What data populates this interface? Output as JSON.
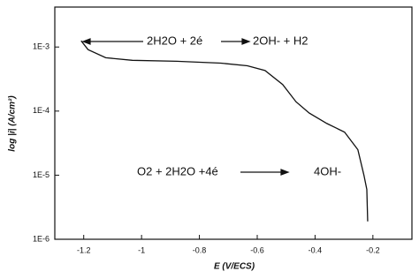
{
  "chart_data": {
    "type": "line",
    "x_label": "E (V/ECS)",
    "y_label": "log |i| (A/cm²)",
    "log_y": true,
    "xlim": [
      -1.3,
      -0.065
    ],
    "ylim": [
      1e-06,
      0.0042
    ],
    "xticks": [
      -1.2,
      -1.0,
      -0.8,
      -0.6,
      -0.4,
      -0.2
    ],
    "yticks": [
      {
        "value": 1e-06,
        "label": "1E-6"
      },
      {
        "value": 1e-05,
        "label": "1E-5"
      },
      {
        "value": 0.0001,
        "label": "1E-4"
      },
      {
        "value": 0.001,
        "label": "1E-3"
      }
    ],
    "x": [
      -1.209,
      -1.185,
      -1.124,
      -1.032,
      -0.879,
      -0.726,
      -0.634,
      -0.573,
      -0.512,
      -0.466,
      -0.42,
      -0.359,
      -0.298,
      -0.252,
      -0.231,
      -0.221,
      -0.218
    ],
    "series": [
      {
        "color": "#111111",
        "values": [
          0.00125,
          0.00091,
          0.00068,
          0.00062,
          0.0006,
          0.00056,
          0.00051,
          0.00043,
          0.00026,
          0.00014,
          9.3e-05,
          6.4e-05,
          4.7e-05,
          2.5e-05,
          1e-05,
          6e-06,
          1.9e-06
        ]
      }
    ],
    "annotations": [
      "2H2O + 2é",
      "2OH- + H2",
      "O2 + 2H2O +4é",
      "4OH-"
    ]
  }
}
